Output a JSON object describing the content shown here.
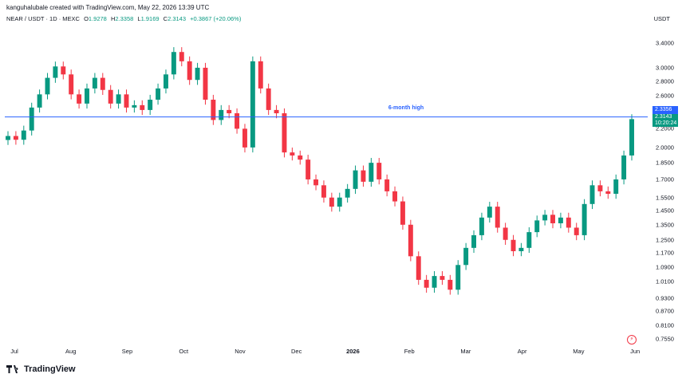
{
  "header": {
    "credit": "kanguhalubale created with TradingView.com, May 22, 2026 13:39 UTC",
    "symbol": "NEAR / USDT · 1D · MEXC",
    "open_label": "O",
    "open_value": "1.9278",
    "high_label": "H",
    "high_value": "2.3358",
    "low_label": "L",
    "low_value": "1.9169",
    "close_label": "C",
    "close_value": "2.3143",
    "change": "+0.3867 (+20.06%)",
    "currency": "USDT"
  },
  "price_tags": {
    "high_line": "2.3356",
    "last_price": "2.3143",
    "countdown": "10:20:24"
  },
  "annotation": "6-month high",
  "brand": "TradingView",
  "colors": {
    "up": "#089981",
    "down": "#f23645",
    "line": "#2962ff"
  },
  "chart_data": {
    "type": "candlestick",
    "title": "",
    "symbol": "NEAR / USDT",
    "interval": "1D",
    "exchange": "MEXC",
    "y_scale": "log",
    "ylim": [
      0.74,
      3.6
    ],
    "y_ticks": [
      "3.4000",
      "3.0000",
      "2.8000",
      "2.6000",
      "2.3356",
      "2.2000",
      "2.0000",
      "1.8500",
      "1.7000",
      "1.5500",
      "1.4500",
      "1.3500",
      "1.2500",
      "1.1700",
      "1.0900",
      "1.0100",
      "0.9300",
      "0.8700",
      "0.8100",
      "0.7550"
    ],
    "x_ticks": [
      "Jul",
      "Aug",
      "Sep",
      "Oct",
      "Nov",
      "Dec",
      "2026",
      "Feb",
      "Mar",
      "Apr",
      "May",
      "Jun"
    ],
    "horizontal_line": {
      "value": 2.3356,
      "label": "6-month high"
    },
    "last_close": 2.3143,
    "series": [
      {
        "date": "06-30",
        "close": 2.12
      },
      {
        "date": "07-04",
        "close": 2.08
      },
      {
        "date": "07-08",
        "close": 2.18
      },
      {
        "date": "07-12",
        "close": 2.45
      },
      {
        "date": "07-16",
        "close": 2.62
      },
      {
        "date": "07-20",
        "close": 2.85
      },
      {
        "date": "07-24",
        "close": 3.02
      },
      {
        "date": "07-28",
        "close": 2.9
      },
      {
        "date": "08-01",
        "close": 2.62
      },
      {
        "date": "08-05",
        "close": 2.5
      },
      {
        "date": "08-09",
        "close": 2.7
      },
      {
        "date": "08-13",
        "close": 2.85
      },
      {
        "date": "08-17",
        "close": 2.68
      },
      {
        "date": "08-21",
        "close": 2.5
      },
      {
        "date": "08-25",
        "close": 2.62
      },
      {
        "date": "08-29",
        "close": 2.45
      },
      {
        "date": "09-02",
        "close": 2.48
      },
      {
        "date": "09-06",
        "close": 2.42
      },
      {
        "date": "09-10",
        "close": 2.55
      },
      {
        "date": "09-14",
        "close": 2.7
      },
      {
        "date": "09-18",
        "close": 2.9
      },
      {
        "date": "09-22",
        "close": 3.25
      },
      {
        "date": "09-26",
        "close": 3.1
      },
      {
        "date": "09-30",
        "close": 2.82
      },
      {
        "date": "10-04",
        "close": 3.0
      },
      {
        "date": "10-08",
        "close": 2.55
      },
      {
        "date": "10-12",
        "close": 2.3
      },
      {
        "date": "10-16",
        "close": 2.42
      },
      {
        "date": "10-20",
        "close": 2.38
      },
      {
        "date": "10-24",
        "close": 2.2
      },
      {
        "date": "10-28",
        "close": 2.0
      },
      {
        "date": "11-01",
        "close": 3.1
      },
      {
        "date": "11-05",
        "close": 2.7
      },
      {
        "date": "11-09",
        "close": 2.42
      },
      {
        "date": "11-13",
        "close": 2.38
      },
      {
        "date": "11-17",
        "close": 1.95
      },
      {
        "date": "11-21",
        "close": 1.92
      },
      {
        "date": "11-25",
        "close": 1.88
      },
      {
        "date": "11-29",
        "close": 1.7
      },
      {
        "date": "12-03",
        "close": 1.65
      },
      {
        "date": "12-07",
        "close": 1.55
      },
      {
        "date": "12-11",
        "close": 1.48
      },
      {
        "date": "12-15",
        "close": 1.55
      },
      {
        "date": "12-19",
        "close": 1.62
      },
      {
        "date": "12-23",
        "close": 1.78
      },
      {
        "date": "12-27",
        "close": 1.68
      },
      {
        "date": "12-31",
        "close": 1.85
      },
      {
        "date": "01-04",
        "close": 1.7
      },
      {
        "date": "01-08",
        "close": 1.6
      },
      {
        "date": "01-12",
        "close": 1.52
      },
      {
        "date": "01-16",
        "close": 1.35
      },
      {
        "date": "01-20",
        "close": 1.15
      },
      {
        "date": "01-24",
        "close": 1.02
      },
      {
        "date": "01-28",
        "close": 0.98
      },
      {
        "date": "02-01",
        "close": 1.04
      },
      {
        "date": "02-05",
        "close": 1.02
      },
      {
        "date": "02-09",
        "close": 0.97
      },
      {
        "date": "02-13",
        "close": 1.1
      },
      {
        "date": "02-17",
        "close": 1.2
      },
      {
        "date": "02-21",
        "close": 1.28
      },
      {
        "date": "02-25",
        "close": 1.4
      },
      {
        "date": "03-01",
        "close": 1.48
      },
      {
        "date": "03-05",
        "close": 1.33
      },
      {
        "date": "03-09",
        "close": 1.25
      },
      {
        "date": "03-13",
        "close": 1.18
      },
      {
        "date": "03-17",
        "close": 1.2
      },
      {
        "date": "03-21",
        "close": 1.3
      },
      {
        "date": "03-25",
        "close": 1.38
      },
      {
        "date": "03-29",
        "close": 1.42
      },
      {
        "date": "04-02",
        "close": 1.36
      },
      {
        "date": "04-06",
        "close": 1.4
      },
      {
        "date": "04-10",
        "close": 1.33
      },
      {
        "date": "04-14",
        "close": 1.28
      },
      {
        "date": "04-18",
        "close": 1.5
      },
      {
        "date": "04-22",
        "close": 1.65
      },
      {
        "date": "04-26",
        "close": 1.6
      },
      {
        "date": "04-30",
        "close": 1.58
      },
      {
        "date": "05-04",
        "close": 1.7
      },
      {
        "date": "05-08",
        "close": 1.92
      },
      {
        "date": "05-10",
        "close": 2.31
      }
    ]
  }
}
